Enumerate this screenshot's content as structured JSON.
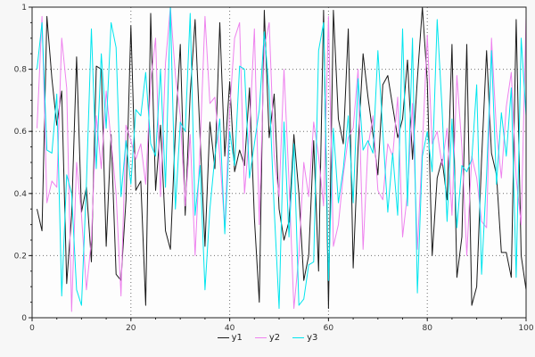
{
  "chart_data": {
    "type": "line",
    "title": "",
    "xlabel": "",
    "ylabel": "",
    "xlim": [
      0,
      100
    ],
    "ylim": [
      0,
      1
    ],
    "x_start": 1,
    "x_end": 100,
    "x_ticks": [
      0,
      20,
      40,
      60,
      80,
      100
    ],
    "x_tick_labels": [
      "0",
      "20",
      "40",
      "60",
      "80",
      "100"
    ],
    "y_ticks": [
      0,
      0.2,
      0.4,
      0.6,
      0.8,
      1
    ],
    "y_tick_labels": [
      "0",
      "0.2",
      "0.4",
      "0.6",
      "0.8",
      "1"
    ],
    "grid": true,
    "grid_style": "dotted",
    "legend_position": "bottom-center",
    "colors": {
      "figure_bg": "#f7f7f7",
      "plot_bg": "#fdfdfd",
      "grid": "#707070",
      "border": "#222222"
    },
    "series": [
      {
        "name": "y1",
        "color": "#1a1a1a",
        "values": [
          0.35,
          0.28,
          0.97,
          0.77,
          0.62,
          0.73,
          0.11,
          0.33,
          0.84,
          0.34,
          0.42,
          0.18,
          0.81,
          0.8,
          0.23,
          0.59,
          0.14,
          0.12,
          0.38,
          0.94,
          0.41,
          0.44,
          0.04,
          0.98,
          0.41,
          0.62,
          0.28,
          0.22,
          0.6,
          0.88,
          0.33,
          0.72,
          0.96,
          0.58,
          0.23,
          0.63,
          0.48,
          0.95,
          0.52,
          0.76,
          0.47,
          0.54,
          0.49,
          0.74,
          0.32,
          0.05,
          0.99,
          0.58,
          0.72,
          0.35,
          0.25,
          0.31,
          0.59,
          0.4,
          0.12,
          0.2,
          0.57,
          0.15,
          0.99,
          0.03,
          0.99,
          0.64,
          0.56,
          0.93,
          0.16,
          0.55,
          0.85,
          0.71,
          0.59,
          0.46,
          0.75,
          0.78,
          0.68,
          0.58,
          0.64,
          0.83,
          0.51,
          0.77,
          1.0,
          0.76,
          0.2,
          0.45,
          0.51,
          0.38,
          0.88,
          0.13,
          0.26,
          0.88,
          0.04,
          0.1,
          0.51,
          0.86,
          0.53,
          0.46,
          0.21,
          0.21,
          0.13,
          0.96,
          0.2,
          0.09
        ]
      },
      {
        "name": "y2",
        "color": "#ee82ee",
        "values": [
          0.61,
          0.97,
          0.37,
          0.44,
          0.42,
          0.9,
          0.74,
          0.02,
          0.5,
          0.33,
          0.09,
          0.25,
          0.65,
          0.48,
          0.73,
          0.57,
          0.4,
          0.07,
          0.62,
          0.57,
          0.51,
          0.56,
          0.43,
          0.76,
          0.9,
          0.39,
          0.82,
          1.0,
          0.78,
          0.65,
          0.36,
          0.59,
          0.2,
          0.55,
          0.97,
          0.69,
          0.71,
          0.52,
          0.29,
          0.67,
          0.9,
          0.95,
          0.4,
          0.6,
          0.93,
          0.3,
          0.87,
          0.95,
          0.52,
          0.39,
          0.8,
          0.44,
          0.03,
          0.2,
          0.5,
          0.39,
          0.63,
          0.52,
          0.36,
          0.97,
          0.23,
          0.3,
          0.46,
          0.58,
          0.61,
          0.8,
          0.22,
          0.55,
          0.65,
          0.41,
          0.38,
          0.56,
          0.52,
          0.71,
          0.26,
          0.4,
          0.69,
          0.22,
          0.55,
          0.91,
          0.56,
          0.6,
          0.49,
          0.61,
          0.33,
          0.78,
          0.55,
          0.2,
          0.52,
          0.45,
          0.31,
          0.29,
          0.9,
          0.6,
          0.45,
          0.68,
          0.79,
          0.45,
          0.3,
          0.97
        ]
      },
      {
        "name": "y3",
        "color": "#00e5ee",
        "values": [
          0.8,
          0.95,
          0.54,
          0.53,
          0.72,
          0.07,
          0.46,
          0.4,
          0.09,
          0.04,
          0.43,
          0.93,
          0.48,
          0.85,
          0.61,
          0.95,
          0.87,
          0.39,
          0.57,
          0.43,
          0.67,
          0.65,
          0.79,
          0.56,
          0.52,
          0.8,
          0.42,
          1.0,
          0.35,
          0.63,
          0.6,
          0.98,
          0.33,
          0.49,
          0.09,
          0.35,
          0.52,
          0.64,
          0.27,
          0.6,
          0.49,
          0.81,
          0.8,
          0.45,
          0.56,
          0.67,
          0.92,
          0.73,
          0.35,
          0.03,
          0.63,
          0.26,
          0.56,
          0.04,
          0.06,
          0.17,
          0.18,
          0.86,
          0.95,
          0.12,
          0.61,
          0.37,
          0.48,
          0.65,
          0.37,
          0.77,
          0.54,
          0.57,
          0.53,
          0.86,
          0.6,
          0.34,
          0.53,
          0.33,
          0.93,
          0.36,
          0.9,
          0.08,
          0.52,
          0.6,
          0.47,
          0.96,
          0.67,
          0.31,
          0.64,
          0.29,
          0.49,
          0.47,
          0.51,
          0.75,
          0.14,
          0.46,
          0.86,
          0.43,
          0.66,
          0.52,
          0.74,
          0.13,
          0.9,
          0.65
        ]
      }
    ],
    "legend": {
      "items": [
        {
          "label": "y1"
        },
        {
          "label": "y2"
        },
        {
          "label": "y3"
        }
      ]
    }
  }
}
